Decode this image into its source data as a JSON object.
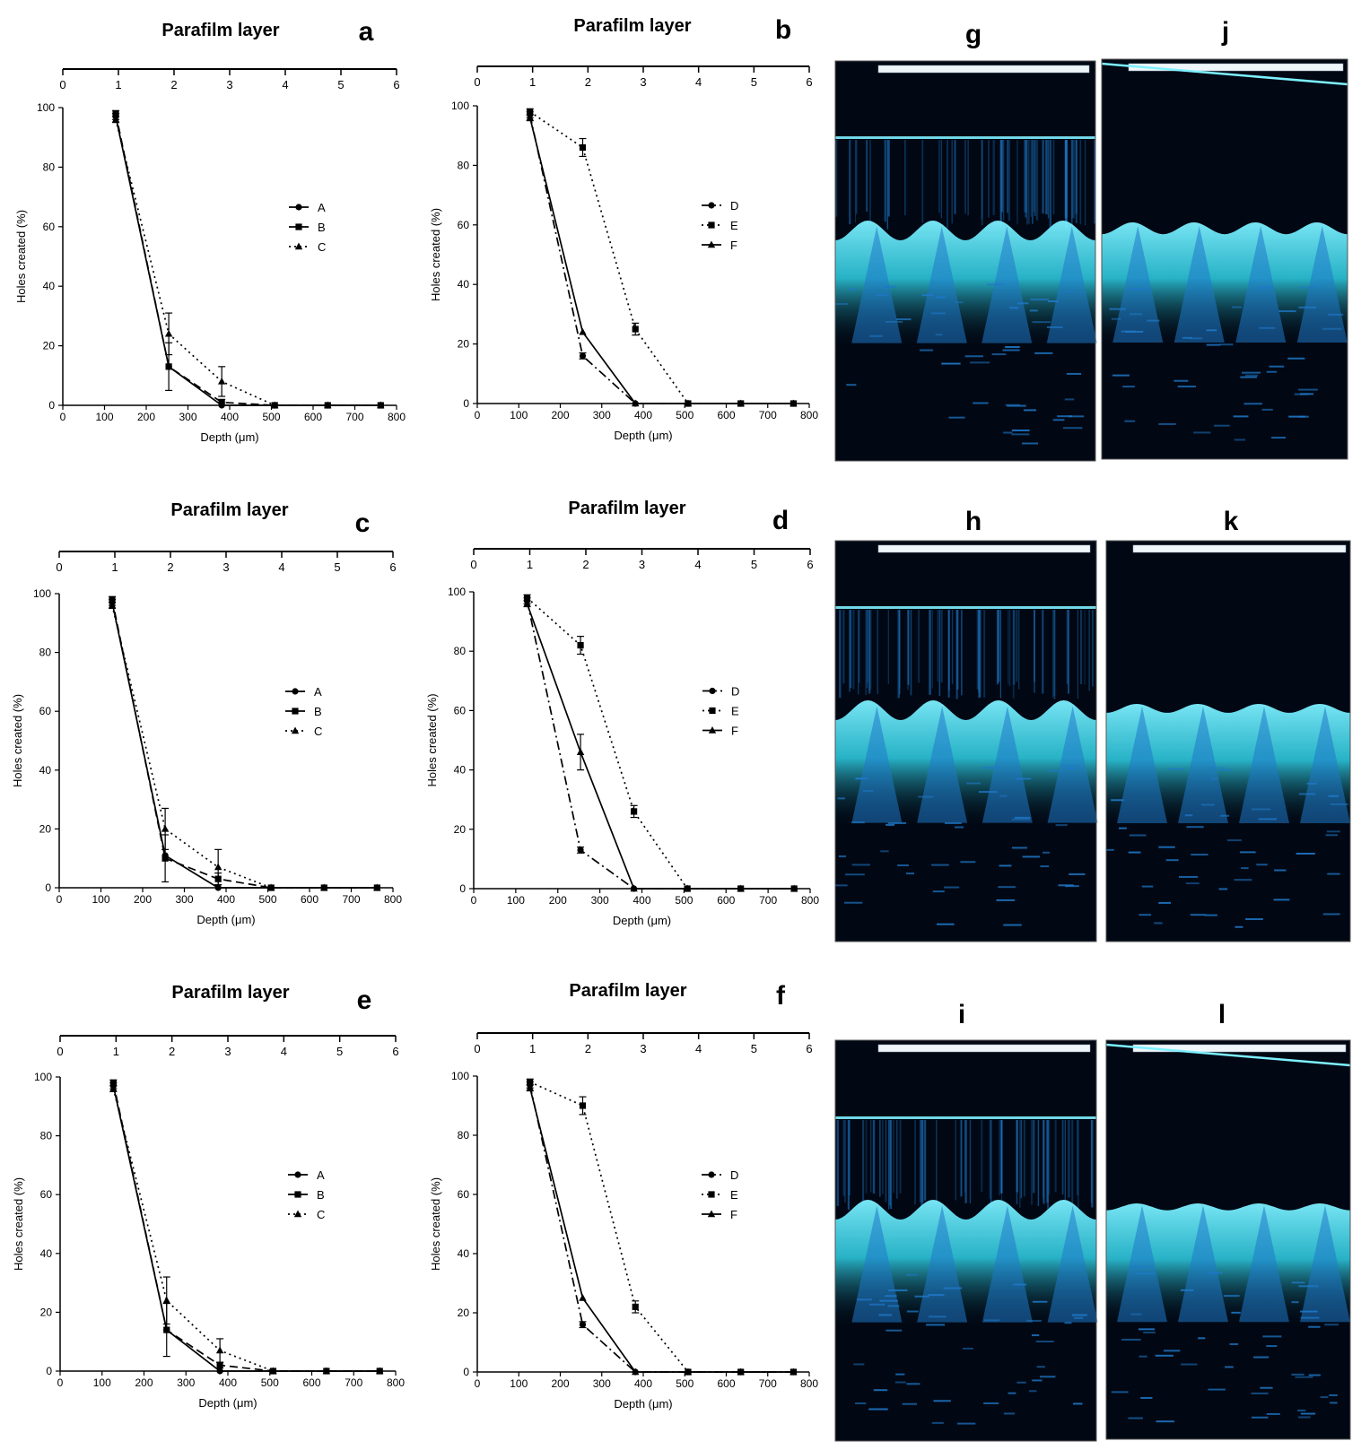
{
  "chart_data": [
    {
      "panel": "a",
      "type": "line",
      "title": "Parafilm layer",
      "xlabel": "Depth (μm)",
      "ylabel": "Holes created (%)",
      "xlim": [
        0,
        800
      ],
      "ylim": [
        0,
        100
      ],
      "xticks": [
        0,
        100,
        200,
        300,
        400,
        500,
        600,
        700,
        800
      ],
      "yticks": [
        0,
        20,
        40,
        60,
        80,
        100
      ],
      "top_axis_ticks": [
        0,
        1,
        2,
        3,
        4,
        5,
        6
      ],
      "legend_position": "right",
      "series": [
        {
          "name": "A",
          "marker": "circle",
          "dash": "solid",
          "x": [
            127,
            254,
            381,
            508,
            635,
            762
          ],
          "y": [
            97,
            13,
            0,
            0,
            0,
            0
          ],
          "err": [
            1,
            0,
            0,
            0,
            0,
            0
          ]
        },
        {
          "name": "B",
          "marker": "square",
          "dash": "dashed",
          "x": [
            127,
            254,
            381,
            508,
            635,
            762
          ],
          "y": [
            98,
            13,
            1,
            0,
            0,
            0
          ],
          "err": [
            1,
            8,
            1,
            0,
            0,
            0
          ]
        },
        {
          "name": "C",
          "marker": "triangle",
          "dash": "dotted",
          "x": [
            127,
            254,
            381,
            508,
            635,
            762
          ],
          "y": [
            96,
            24,
            8,
            0,
            0,
            0
          ],
          "err": [
            1,
            7,
            5,
            0,
            0,
            0
          ]
        }
      ]
    },
    {
      "panel": "b",
      "type": "line",
      "title": "Parafilm layer",
      "xlabel": "Depth (μm)",
      "ylabel": "Holes created (%)",
      "xlim": [
        0,
        800
      ],
      "ylim": [
        0,
        100
      ],
      "xticks": [
        0,
        100,
        200,
        300,
        400,
        500,
        600,
        700,
        800
      ],
      "yticks": [
        0,
        20,
        40,
        60,
        80,
        100
      ],
      "top_axis_ticks": [
        0,
        1,
        2,
        3,
        4,
        5,
        6
      ],
      "legend_position": "right",
      "series": [
        {
          "name": "D",
          "marker": "circle",
          "dash": "dashdot",
          "x": [
            127,
            254,
            381,
            508,
            635,
            762
          ],
          "y": [
            97,
            16,
            0,
            0,
            0,
            0
          ],
          "err": [
            1,
            1,
            0,
            0,
            0,
            0
          ]
        },
        {
          "name": "E",
          "marker": "square",
          "dash": "dotted",
          "x": [
            127,
            254,
            381,
            508,
            635,
            762
          ],
          "y": [
            98,
            86,
            25,
            0,
            0,
            0
          ],
          "err": [
            1,
            3,
            2,
            0,
            0,
            0
          ]
        },
        {
          "name": "F",
          "marker": "triangle",
          "dash": "solid",
          "x": [
            127,
            254,
            381,
            508,
            635,
            762
          ],
          "y": [
            96,
            24,
            0,
            0,
            0,
            0
          ],
          "err": [
            1,
            0,
            0,
            0,
            0,
            0
          ]
        }
      ]
    },
    {
      "panel": "c",
      "type": "line",
      "title": "Parafilm layer",
      "xlabel": "Depth (μm)",
      "ylabel": "Holes created (%)",
      "xlim": [
        0,
        800
      ],
      "ylim": [
        0,
        100
      ],
      "xticks": [
        0,
        100,
        200,
        300,
        400,
        500,
        600,
        700,
        800
      ],
      "yticks": [
        0,
        20,
        40,
        60,
        80,
        100
      ],
      "top_axis_ticks": [
        0,
        1,
        2,
        3,
        4,
        5,
        6
      ],
      "legend_position": "right",
      "series": [
        {
          "name": "A",
          "marker": "circle",
          "dash": "solid",
          "x": [
            127,
            254,
            381,
            508,
            635,
            762
          ],
          "y": [
            97,
            11,
            0,
            0,
            0,
            0
          ],
          "err": [
            1,
            0,
            0,
            0,
            0,
            0
          ]
        },
        {
          "name": "B",
          "marker": "square",
          "dash": "dashed",
          "x": [
            127,
            254,
            381,
            508,
            635,
            762
          ],
          "y": [
            98,
            10,
            3,
            0,
            0,
            0
          ],
          "err": [
            1,
            8,
            2,
            0,
            0,
            0
          ]
        },
        {
          "name": "C",
          "marker": "triangle",
          "dash": "dotted",
          "x": [
            127,
            254,
            381,
            508,
            635,
            762
          ],
          "y": [
            96,
            20,
            7,
            0,
            0,
            0
          ],
          "err": [
            1,
            7,
            6,
            0,
            0,
            0
          ]
        }
      ]
    },
    {
      "panel": "d",
      "type": "line",
      "title": "Parafilm layer",
      "xlabel": "Depth (μm)",
      "ylabel": "Holes created (%)",
      "xlim": [
        0,
        800
      ],
      "ylim": [
        0,
        100
      ],
      "xticks": [
        0,
        100,
        200,
        300,
        400,
        500,
        600,
        700,
        800
      ],
      "yticks": [
        0,
        20,
        40,
        60,
        80,
        100
      ],
      "top_axis_ticks": [
        0,
        1,
        2,
        3,
        4,
        5,
        6
      ],
      "legend_position": "right",
      "series": [
        {
          "name": "D",
          "marker": "circle",
          "dash": "dashdot",
          "x": [
            127,
            254,
            381,
            508,
            635,
            762
          ],
          "y": [
            97,
            13,
            0,
            0,
            0,
            0
          ],
          "err": [
            1,
            1,
            0,
            0,
            0,
            0
          ]
        },
        {
          "name": "E",
          "marker": "square",
          "dash": "dotted",
          "x": [
            127,
            254,
            381,
            508,
            635,
            762
          ],
          "y": [
            98,
            82,
            26,
            0,
            0,
            0
          ],
          "err": [
            1,
            3,
            2,
            0,
            0,
            0
          ]
        },
        {
          "name": "F",
          "marker": "triangle",
          "dash": "solid",
          "x": [
            127,
            254,
            381,
            508,
            635,
            762
          ],
          "y": [
            96,
            46,
            0,
            0,
            0,
            0
          ],
          "err": [
            1,
            6,
            0,
            0,
            0,
            0
          ]
        }
      ]
    },
    {
      "panel": "e",
      "type": "line",
      "title": "Parafilm layer",
      "xlabel": "Depth (μm)",
      "ylabel": "Holes created (%)",
      "xlim": [
        0,
        800
      ],
      "ylim": [
        0,
        100
      ],
      "xticks": [
        0,
        100,
        200,
        300,
        400,
        500,
        600,
        700,
        800
      ],
      "yticks": [
        0,
        20,
        40,
        60,
        80,
        100
      ],
      "top_axis_ticks": [
        0,
        1,
        2,
        3,
        4,
        5,
        6
      ],
      "legend_position": "right",
      "series": [
        {
          "name": "A",
          "marker": "circle",
          "dash": "solid",
          "x": [
            127,
            254,
            381,
            508,
            635,
            762
          ],
          "y": [
            97,
            14,
            0,
            0,
            0,
            0
          ],
          "err": [
            1,
            0,
            0,
            0,
            0,
            0
          ]
        },
        {
          "name": "B",
          "marker": "square",
          "dash": "dashed",
          "x": [
            127,
            254,
            381,
            508,
            635,
            762
          ],
          "y": [
            98,
            14,
            2,
            0,
            0,
            0
          ],
          "err": [
            1,
            9,
            1,
            0,
            0,
            0
          ]
        },
        {
          "name": "C",
          "marker": "triangle",
          "dash": "dotted",
          "x": [
            127,
            254,
            381,
            508,
            635,
            762
          ],
          "y": [
            96,
            24,
            7,
            0,
            0,
            0
          ],
          "err": [
            1,
            8,
            4,
            0,
            0,
            0
          ]
        }
      ]
    },
    {
      "panel": "f",
      "type": "line",
      "title": "Parafilm layer",
      "xlabel": "Depth (μm)",
      "ylabel": "Holes created (%)",
      "xlim": [
        0,
        800
      ],
      "ylim": [
        0,
        100
      ],
      "xticks": [
        0,
        100,
        200,
        300,
        400,
        500,
        600,
        700,
        800
      ],
      "yticks": [
        0,
        20,
        40,
        60,
        80,
        100
      ],
      "top_axis_ticks": [
        0,
        1,
        2,
        3,
        4,
        5,
        6
      ],
      "legend_position": "right",
      "series": [
        {
          "name": "D",
          "marker": "circle",
          "dash": "dashdot",
          "x": [
            127,
            254,
            381,
            508,
            635,
            762
          ],
          "y": [
            97,
            16,
            0,
            0,
            0,
            0
          ],
          "err": [
            1,
            1,
            0,
            0,
            0,
            0
          ]
        },
        {
          "name": "E",
          "marker": "square",
          "dash": "dotted",
          "x": [
            127,
            254,
            381,
            508,
            635,
            762
          ],
          "y": [
            98,
            90,
            22,
            0,
            0,
            0
          ],
          "err": [
            1,
            3,
            2,
            0,
            0,
            0
          ]
        },
        {
          "name": "F",
          "marker": "triangle",
          "dash": "solid",
          "x": [
            127,
            254,
            381,
            508,
            635,
            762
          ],
          "y": [
            96,
            25,
            0,
            0,
            0,
            0
          ],
          "err": [
            1,
            0,
            0,
            0,
            0,
            0
          ]
        }
      ]
    }
  ],
  "images": [
    {
      "label": "g",
      "has_top_line": true,
      "top_line_slope": 0,
      "surface_scale": 1,
      "peaks": 4
    },
    {
      "label": "j",
      "has_top_line": false,
      "top_line_slope": 1,
      "surface_scale": 0.6,
      "peaks": 4
    },
    {
      "label": "h",
      "has_top_line": true,
      "top_line_slope": 0,
      "surface_scale": 1,
      "peaks": 4
    },
    {
      "label": "k",
      "has_top_line": false,
      "top_line_slope": 0,
      "surface_scale": 0.45,
      "peaks": 4
    },
    {
      "label": "i",
      "has_top_line": true,
      "top_line_slope": 0,
      "surface_scale": 1,
      "peaks": 4
    },
    {
      "label": "l",
      "has_top_line": false,
      "top_line_slope": 1,
      "surface_scale": 0.35,
      "peaks": 4
    }
  ],
  "colors": {
    "line": "#000000",
    "oct_background": "#010814",
    "oct_tissue": "#2fd0e6",
    "oct_deep": "#1f78c8",
    "oct_highlight": "#7ef0ff"
  }
}
